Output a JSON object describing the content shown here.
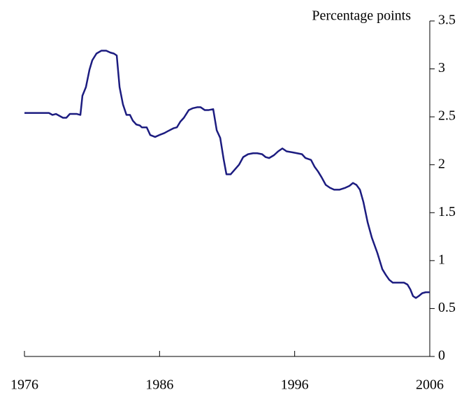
{
  "chart_data": {
    "type": "line",
    "y_axis_label": "Percentage points",
    "x": [
      1976.0,
      1977.03,
      1977.81,
      1978.07,
      1978.33,
      1978.85,
      1979.1,
      1979.36,
      1979.88,
      1980.14,
      1980.29,
      1980.55,
      1980.81,
      1981.02,
      1981.33,
      1981.69,
      1982.05,
      1982.36,
      1982.62,
      1982.83,
      1983.04,
      1983.29,
      1983.55,
      1983.81,
      1984.02,
      1984.28,
      1984.54,
      1984.69,
      1985.05,
      1985.31,
      1985.67,
      1985.98,
      1986.35,
      1986.61,
      1987.02,
      1987.28,
      1987.54,
      1987.8,
      1988.16,
      1988.47,
      1988.78,
      1989.04,
      1989.35,
      1989.61,
      1989.97,
      1990.23,
      1990.49,
      1990.74,
      1990.95,
      1991.26,
      1991.57,
      1991.88,
      1992.19,
      1992.55,
      1992.92,
      1993.23,
      1993.59,
      1993.85,
      1994.11,
      1994.47,
      1994.78,
      1995.09,
      1995.4,
      1995.81,
      1996.18,
      1996.54,
      1996.8,
      1997.21,
      1997.47,
      1997.73,
      1997.99,
      1998.3,
      1998.61,
      1998.92,
      1999.33,
      1999.75,
      2000.06,
      2000.31,
      2000.57,
      2000.83,
      2001.09,
      2001.4,
      2001.71,
      2002.12,
      2002.49,
      2002.75,
      2003.0,
      2003.26,
      2003.68,
      2004.09,
      2004.35,
      2004.56,
      2004.76,
      2004.97,
      2005.18,
      2005.44,
      2005.7,
      2006.0
    ],
    "series": [
      {
        "color": "#1c1c80",
        "values": [
          2.54,
          2.54,
          2.54,
          2.52,
          2.53,
          2.49,
          2.49,
          2.53,
          2.53,
          2.52,
          2.72,
          2.81,
          2.99,
          3.09,
          3.16,
          3.19,
          3.19,
          3.17,
          3.16,
          3.14,
          2.81,
          2.63,
          2.52,
          2.52,
          2.46,
          2.42,
          2.41,
          2.39,
          2.39,
          2.31,
          2.29,
          2.31,
          2.33,
          2.35,
          2.38,
          2.39,
          2.45,
          2.49,
          2.57,
          2.59,
          2.6,
          2.6,
          2.57,
          2.57,
          2.58,
          2.36,
          2.28,
          2.06,
          1.9,
          1.9,
          1.95,
          2.0,
          2.08,
          2.11,
          2.12,
          2.12,
          2.11,
          2.08,
          2.07,
          2.1,
          2.14,
          2.17,
          2.14,
          2.13,
          2.12,
          2.11,
          2.07,
          2.05,
          1.98,
          1.93,
          1.87,
          1.79,
          1.76,
          1.74,
          1.74,
          1.76,
          1.78,
          1.81,
          1.79,
          1.74,
          1.61,
          1.4,
          1.24,
          1.08,
          0.91,
          0.85,
          0.8,
          0.77,
          0.77,
          0.77,
          0.75,
          0.7,
          0.63,
          0.61,
          0.63,
          0.66,
          0.67,
          0.67
        ]
      }
    ],
    "xlim": [
      1976,
      2006
    ],
    "xticks": [
      1976,
      1986,
      1996,
      2006
    ],
    "ylim": [
      0,
      3.5
    ],
    "yticks": [
      0,
      0.5,
      1,
      1.5,
      2,
      2.5,
      3,
      3.5
    ],
    "y_axis_side": "right"
  }
}
